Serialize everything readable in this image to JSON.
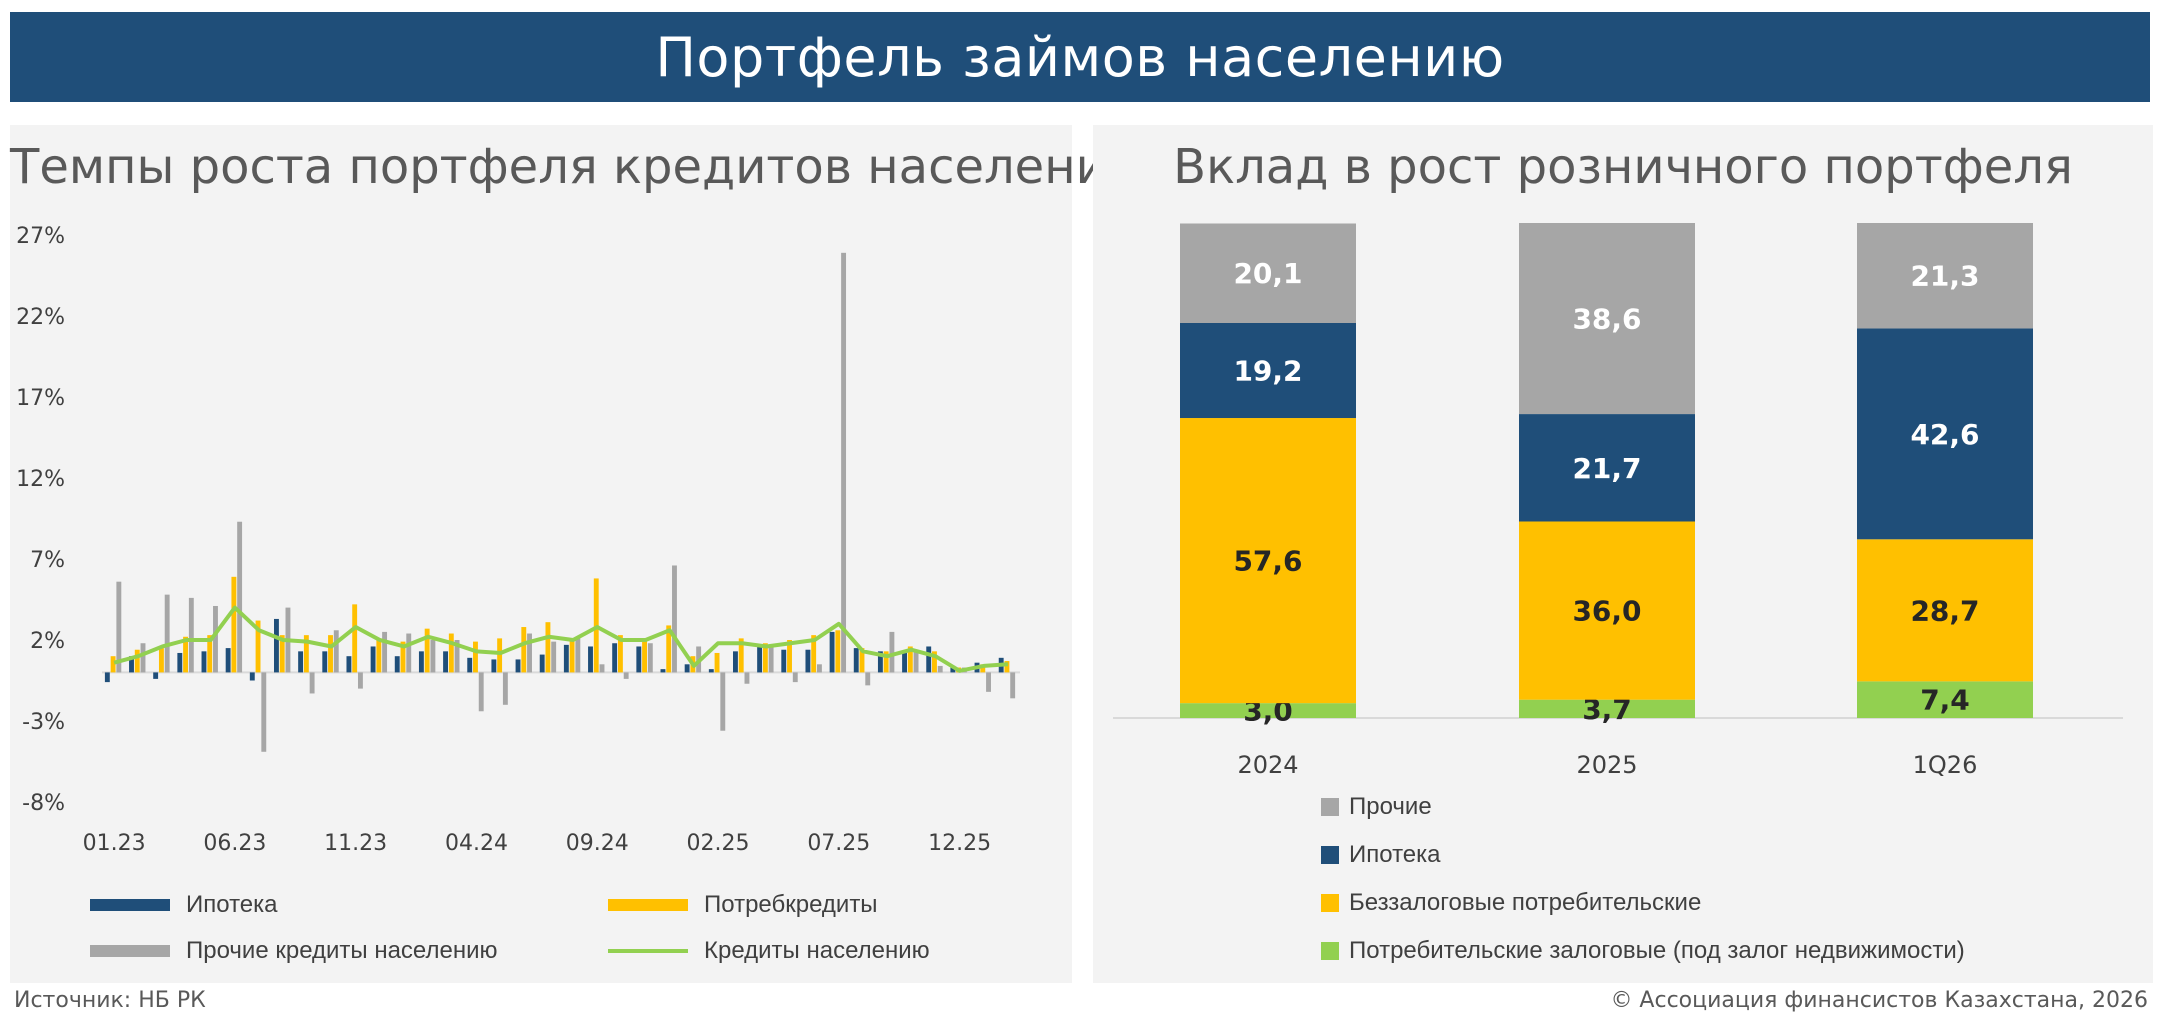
{
  "header": {
    "title": "Портфель займов населению"
  },
  "footer": {
    "source": "Источник: НБ РК",
    "copyright": "© Ассоциация финансистов Казахстана, 2026"
  },
  "colors": {
    "mortgage": "#1f4e79",
    "consumer": "#ffc000",
    "other": "#a6a6a6",
    "total": "#92d050",
    "secured": "#92d050"
  },
  "chart_data": [
    {
      "type": "bar",
      "title": "Темпы роста портфеля кредитов населению, м/м",
      "y_ticks": [
        "27%",
        "22%",
        "17%",
        "12%",
        "7%",
        "2%",
        "-3%",
        "-8%"
      ],
      "ylim": [
        -8,
        27
      ],
      "x_tick_labels": [
        "01.23",
        "06.23",
        "11.23",
        "04.24",
        "09.24",
        "02.25",
        "07.25",
        "12.25"
      ],
      "x_tick_months": [
        "2023-01",
        "2023-06",
        "2023-11",
        "2024-04",
        "2024-09",
        "2025-02",
        "2025-07",
        "2025-12"
      ],
      "months": [
        "2023-01",
        "2023-02",
        "2023-03",
        "2023-04",
        "2023-05",
        "2023-06",
        "2023-07",
        "2023-08",
        "2023-09",
        "2023-10",
        "2023-11",
        "2023-12",
        "2024-01",
        "2024-02",
        "2024-03",
        "2024-04",
        "2024-05",
        "2024-06",
        "2024-07",
        "2024-08",
        "2024-09",
        "2024-10",
        "2024-11",
        "2024-12",
        "2025-01",
        "2025-02",
        "2025-03",
        "2025-04",
        "2025-05",
        "2025-06",
        "2025-07",
        "2025-08",
        "2025-09",
        "2025-10",
        "2025-11",
        "2025-12",
        "2026-01",
        "2026-02"
      ],
      "series": [
        {
          "name": "Ипотека",
          "kind": "bar",
          "color": "#1f4e79",
          "values": [
            -0.6,
            1.0,
            -0.4,
            1.2,
            1.3,
            1.5,
            -0.5,
            3.3,
            1.3,
            1.3,
            1.0,
            1.6,
            1.0,
            1.3,
            1.3,
            0.9,
            0.8,
            0.8,
            1.1,
            1.7,
            1.6,
            1.8,
            1.6,
            0.2,
            0.5,
            0.2,
            1.3,
            1.6,
            1.4,
            1.4,
            2.5,
            1.5,
            1.3,
            1.2,
            1.6,
            0.4,
            0.6,
            0.9
          ]
        },
        {
          "name": "Потребкредиты",
          "kind": "bar",
          "color": "#ffc000",
          "values": [
            1.0,
            1.4,
            1.5,
            2.2,
            2.3,
            5.9,
            3.2,
            2.3,
            2.3,
            2.3,
            4.2,
            2.1,
            1.9,
            2.7,
            2.4,
            1.9,
            2.1,
            2.8,
            3.1,
            2.1,
            5.8,
            2.3,
            2.1,
            2.9,
            1.0,
            1.2,
            2.1,
            1.8,
            2.0,
            2.3,
            2.6,
            1.5,
            1.3,
            1.6,
            1.3,
            0.3,
            0.5,
            0.7
          ]
        },
        {
          "name": "Прочие кредиты населению",
          "kind": "bar",
          "color": "#a6a6a6",
          "values": [
            5.6,
            1.8,
            4.8,
            4.6,
            4.1,
            9.3,
            -4.9,
            4.0,
            -1.3,
            2.6,
            -1.0,
            2.5,
            2.4,
            2.0,
            2.0,
            -2.4,
            -2.0,
            2.4,
            1.9,
            2.1,
            0.5,
            -0.4,
            1.8,
            6.6,
            1.6,
            -3.6,
            -0.7,
            1.7,
            -0.6,
            0.5,
            25.9,
            -0.8,
            2.5,
            1.3,
            0.4,
            0.3,
            -1.2,
            -1.6
          ]
        },
        {
          "name": "Кредиты населению",
          "kind": "line",
          "color": "#92d050",
          "values": [
            0.6,
            1.0,
            1.6,
            2.0,
            2.0,
            4.0,
            2.6,
            2.0,
            1.9,
            1.6,
            2.8,
            2.0,
            1.6,
            2.2,
            1.8,
            1.3,
            1.2,
            1.8,
            2.2,
            2.0,
            2.8,
            2.0,
            2.0,
            2.6,
            0.4,
            1.8,
            1.8,
            1.6,
            1.8,
            2.0,
            3.0,
            1.3,
            1.0,
            1.4,
            1.0,
            0.1,
            0.4,
            0.5
          ]
        }
      ],
      "legend": [
        "Ипотека",
        "Потребкредиты",
        "Прочие кредиты населению",
        "Кредиты населению"
      ]
    },
    {
      "type": "bar",
      "stacked": true,
      "title": "Вклад в рост розничного портфеля",
      "categories": [
        "2024",
        "2025",
        "1Q26"
      ],
      "series": [
        {
          "name": "Потребительские залоговые (под залог недвижимости)",
          "color": "#92d050",
          "values": [
            3.0,
            3.7,
            7.4
          ],
          "labels": [
            "3,0",
            "3,7",
            "7,4"
          ]
        },
        {
          "name": "Беззалоговые потребительские",
          "color": "#ffc000",
          "values": [
            57.6,
            36.0,
            28.7
          ],
          "labels": [
            "57,6",
            "36,0",
            "28,7"
          ]
        },
        {
          "name": "Ипотека",
          "color": "#1f4e79",
          "values": [
            19.2,
            21.7,
            42.6
          ],
          "labels": [
            "19,2",
            "21,7",
            "42,6"
          ]
        },
        {
          "name": "Прочие",
          "color": "#a6a6a6",
          "values": [
            20.1,
            38.6,
            21.3
          ],
          "labels": [
            "20,1",
            "38,6",
            "21,3"
          ]
        }
      ],
      "legend": [
        "Прочие",
        "Ипотека",
        "Беззалоговые потребительские",
        "Потребительские залоговые (под залог недвижимости)"
      ],
      "ylim": [
        0,
        100
      ]
    }
  ]
}
